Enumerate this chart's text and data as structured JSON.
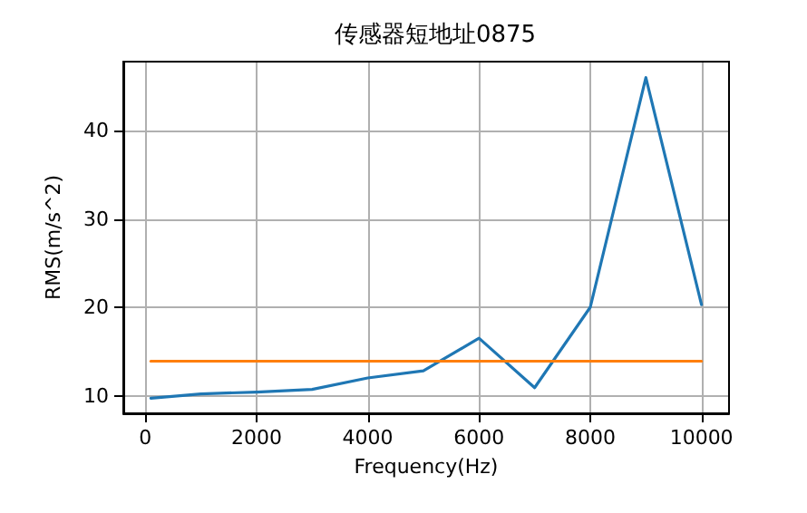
{
  "chart_data": {
    "type": "line",
    "title": "传感器短地址0875",
    "xlabel": "Frequency(Hz)",
    "ylabel": "RMS(m/s^2)",
    "x": [
      100,
      1000,
      2000,
      3000,
      4000,
      5000,
      6000,
      7000,
      8000,
      9000,
      10000
    ],
    "series": [
      {
        "color": "#1f77b4",
        "values": [
          9.7,
          10.2,
          10.4,
          10.7,
          12.0,
          12.8,
          16.5,
          10.9,
          20.0,
          46.0,
          20.3
        ]
      },
      {
        "color": "#ff7f0e",
        "x": [
          100,
          10000
        ],
        "values": [
          13.9,
          13.9
        ]
      }
    ],
    "xlim": [
      -395,
      10495
    ],
    "ylim": [
      8.0,
      47.8
    ],
    "xticks": [
      0,
      2000,
      4000,
      6000,
      8000,
      10000
    ],
    "yticks": [
      10,
      20,
      30,
      40
    ],
    "grid": true,
    "marker": "none",
    "line_style": "solid"
  }
}
